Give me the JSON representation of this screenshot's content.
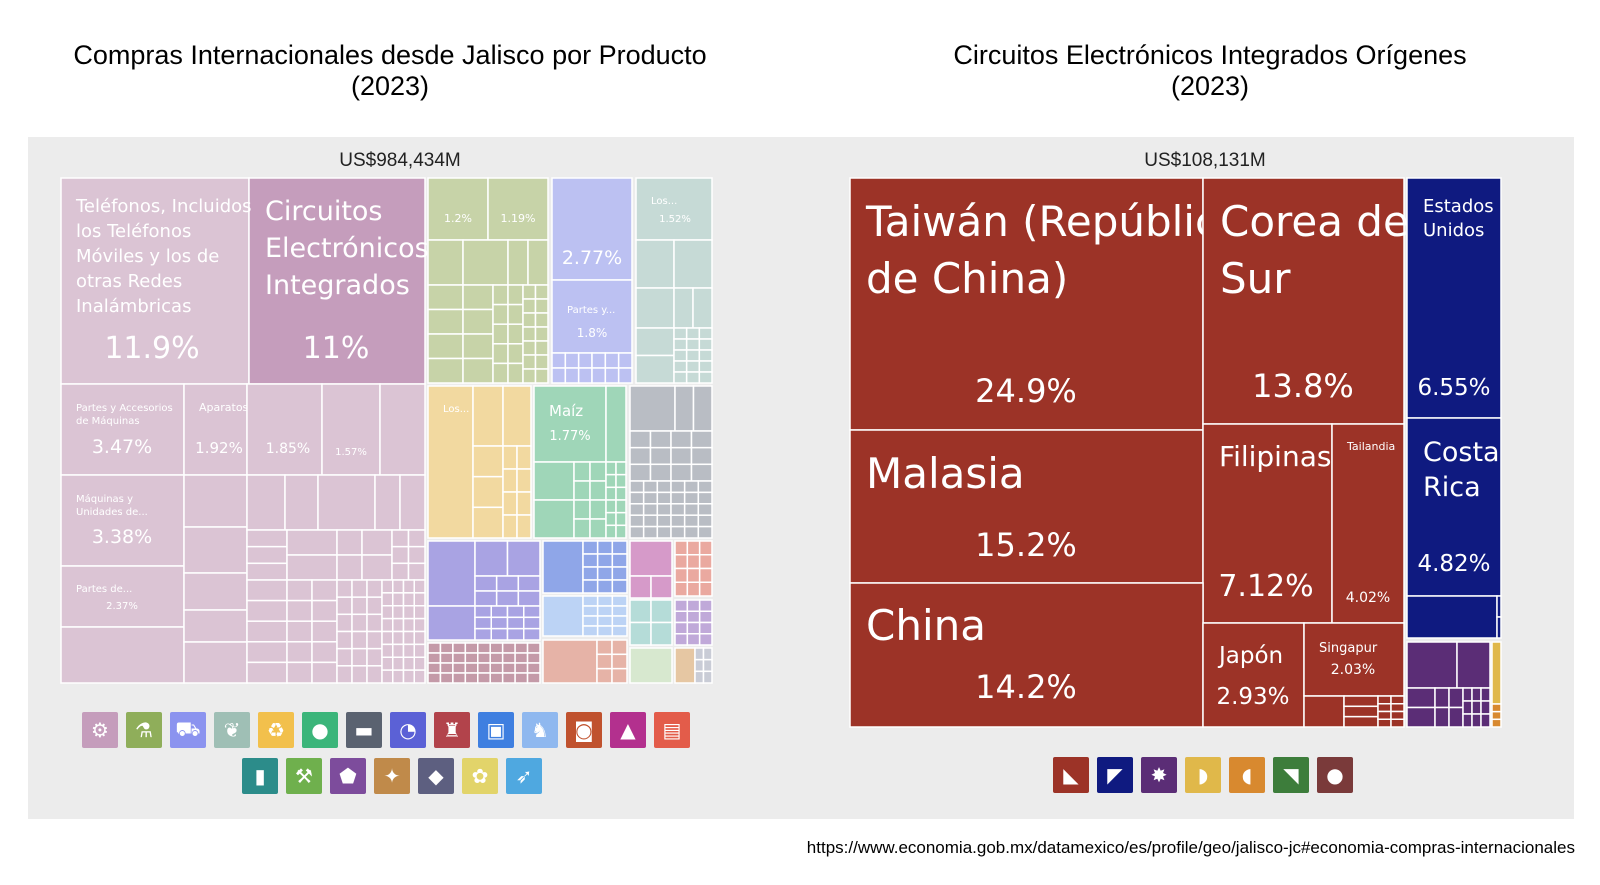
{
  "charts": {
    "left": {
      "title_line1": "Compras Internacionales desde Jalisco por Producto",
      "title_line2": "(2023)",
      "total": "US$984,434M",
      "main_tiles": [
        {
          "label": "Teléfonos, Incluidos los Teléfonos Móviles y los de otras Redes Inalámbricas",
          "lines": [
            "Teléfonos, Incluidos",
            "los Teléfonos",
            "Móviles y los de",
            "otras Redes",
            "Inalámbricas"
          ],
          "percent": "11.9%",
          "color": "#dbc4d4"
        },
        {
          "label": "Circuitos Electrónicos Integrados",
          "lines": [
            "Circuitos",
            "Electrónicos",
            "Integrados"
          ],
          "percent": "11%",
          "color": "#c59dbc"
        },
        {
          "label": "Partes y Accesorios de Máquinas",
          "lines": [
            "Partes y Accesorios",
            "de Máquinas"
          ],
          "percent": "3.47%",
          "color": "#dbc4d4"
        },
        {
          "label": "Aparatos...",
          "lines": [
            "Aparatos..."
          ],
          "percent": "1.92%",
          "color": "#dbc4d4"
        },
        {
          "label": "",
          "lines": [],
          "percent": "1.85%",
          "color": "#dbc4d4"
        },
        {
          "label": "",
          "lines": [],
          "percent": "1.57%",
          "color": "#dbc4d4"
        },
        {
          "label": "Máquinas y Unidades de...",
          "lines": [
            "Máquinas y",
            "Unidades de..."
          ],
          "percent": "3.38%",
          "color": "#dbc4d4"
        },
        {
          "label": "Partes de...",
          "lines": [
            "Partes de..."
          ],
          "percent": "2.37%",
          "color": "#dbc4d4"
        },
        {
          "label": "",
          "lines": [],
          "percent": "1.2%",
          "color": "#c7d3a8"
        },
        {
          "label": "",
          "lines": [],
          "percent": "1.19%",
          "color": "#c7d3a8"
        },
        {
          "label": "",
          "lines": [],
          "percent": "2.77%",
          "color": "#bcc1f2"
        },
        {
          "label": "Partes y...",
          "lines": [
            "Partes y..."
          ],
          "percent": "1.8%",
          "color": "#bcc1f2"
        },
        {
          "label": "Los...",
          "lines": [
            "Los..."
          ],
          "percent": "1.52%",
          "color": "#c6dad6"
        },
        {
          "label": "Los...",
          "lines": [
            "Los..."
          ],
          "percent": "",
          "color": "#f2d9a0"
        },
        {
          "label": "Maíz",
          "lines": [
            "Maíz"
          ],
          "percent": "1.77%",
          "color": "#9fd6b8"
        }
      ],
      "icons": [
        {
          "name": "gear-icon",
          "glyph": "⚙",
          "color": "#c59dbc"
        },
        {
          "name": "flask-icon",
          "glyph": "⚗",
          "color": "#8fae5a"
        },
        {
          "name": "truck-icon",
          "glyph": "⛟",
          "color": "#8b93ef"
        },
        {
          "name": "leaf-icon",
          "glyph": "❦",
          "color": "#9fbfb5"
        },
        {
          "name": "recycle-icon",
          "glyph": "♻",
          "color": "#f2c04c"
        },
        {
          "name": "tomato-icon",
          "glyph": "●",
          "color": "#3bb57a"
        },
        {
          "name": "anvil-icon",
          "glyph": "▬",
          "color": "#5a6270"
        },
        {
          "name": "gauge-icon",
          "glyph": "◔",
          "color": "#5b61d6"
        },
        {
          "name": "shirt-icon",
          "glyph": "♜",
          "color": "#b2434b"
        },
        {
          "name": "box-icon",
          "glyph": "▣",
          "color": "#3f7fe0"
        },
        {
          "name": "cow-icon",
          "glyph": "♞",
          "color": "#8fb8ef"
        },
        {
          "name": "log-icon",
          "glyph": "◙",
          "color": "#c0522e"
        },
        {
          "name": "shoe-icon",
          "glyph": "▲",
          "color": "#b3308e"
        },
        {
          "name": "document-icon",
          "glyph": "▤",
          "color": "#e35c4a"
        },
        {
          "name": "bottle-icon",
          "glyph": "▮",
          "color": "#2c8c8a"
        },
        {
          "name": "pickaxe-icon",
          "glyph": "⚒",
          "color": "#6fb04d"
        },
        {
          "name": "stone-icon",
          "glyph": "⬟",
          "color": "#7d4c9c"
        },
        {
          "name": "hide-icon",
          "glyph": "✦",
          "color": "#c08a4a"
        },
        {
          "name": "diamond-icon",
          "glyph": "◆",
          "color": "#5d5f80"
        },
        {
          "name": "palette-icon",
          "glyph": "✿",
          "color": "#e2d46a"
        },
        {
          "name": "missile-icon",
          "glyph": "➶",
          "color": "#4fa8e0"
        }
      ]
    },
    "right": {
      "title_line1": "Circuitos Electrónicos Integrados Orígenes",
      "title_line2": "(2023)",
      "total": "US$108,131M",
      "main_tiles": [
        {
          "label": "Taiwán (República de China)",
          "lines": [
            "Taiwán (República",
            "de China)"
          ],
          "percent": "24.9%",
          "color": "#9c3327"
        },
        {
          "label": "Corea del Sur",
          "lines": [
            "Corea del",
            "Sur"
          ],
          "percent": "13.8%",
          "color": "#9c3327"
        },
        {
          "label": "Estados Unidos",
          "lines": [
            "Estados",
            "Unidos"
          ],
          "percent": "6.55%",
          "color": "#0f1a80"
        },
        {
          "label": "Malasia",
          "lines": [
            "Malasia"
          ],
          "percent": "15.2%",
          "color": "#9c3327"
        },
        {
          "label": "Filipinas",
          "lines": [
            "Filipinas"
          ],
          "percent": "7.12%",
          "color": "#9c3327"
        },
        {
          "label": "Tailandia",
          "lines": [
            "Tailandia"
          ],
          "percent": "4.02%",
          "color": "#9c3327"
        },
        {
          "label": "Costa Rica",
          "lines": [
            "Costa",
            "Rica"
          ],
          "percent": "4.82%",
          "color": "#0f1a80"
        },
        {
          "label": "China",
          "lines": [
            "China"
          ],
          "percent": "14.2%",
          "color": "#9c3327"
        },
        {
          "label": "Japón",
          "lines": [
            "Japón"
          ],
          "percent": "2.93%",
          "color": "#9c3327"
        },
        {
          "label": "Singapur",
          "lines": [
            "Singapur"
          ],
          "percent": "2.03%",
          "color": "#9c3327"
        }
      ],
      "icons": [
        {
          "name": "asia-icon",
          "glyph": "◣",
          "color": "#9c3327"
        },
        {
          "name": "north-america-icon",
          "glyph": "◤",
          "color": "#0f1a80"
        },
        {
          "name": "europe-icon",
          "glyph": "✸",
          "color": "#5b2d76"
        },
        {
          "name": "africa-icon",
          "glyph": "◗",
          "color": "#e0b84a"
        },
        {
          "name": "oceania-icon",
          "glyph": "◖",
          "color": "#d8892f"
        },
        {
          "name": "south-america-icon",
          "glyph": "◥",
          "color": "#3d7d3b"
        },
        {
          "name": "antarctica-icon",
          "glyph": "●",
          "color": "#7a3a3a"
        }
      ]
    }
  },
  "source": "https://www.economia.gob.mx/datamexico/es/profile/geo/jalisco-jc#economia-compras-internacionales"
}
